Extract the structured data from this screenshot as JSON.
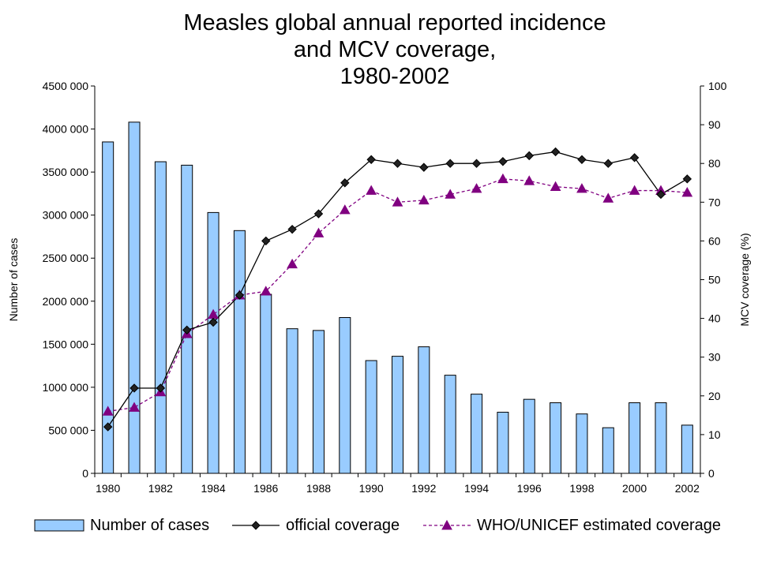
{
  "chart_data": {
    "type": "bar",
    "title_lines": [
      "Measles global annual reported incidence",
      "and MCV coverage,",
      "1980-2002"
    ],
    "ylabel": "Number of cases",
    "y2label": "MCV coverage (%)",
    "ylim": [
      0,
      4500000
    ],
    "y2lim": [
      0,
      100
    ],
    "y_ticks": [
      0,
      500000,
      1000000,
      1500000,
      2000000,
      2500000,
      3000000,
      3500000,
      4000000,
      4500000
    ],
    "y_tick_labels": [
      "0",
      "500 000",
      "1000 000",
      "1500 000",
      "2000 000",
      "2500 000",
      "3000 000",
      "3500 000",
      "4000 000",
      "4500 000"
    ],
    "y2_ticks": [
      0,
      10,
      20,
      30,
      40,
      50,
      60,
      70,
      80,
      90,
      100
    ],
    "y2_tick_labels": [
      "0",
      "10",
      "20",
      "30",
      "40",
      "50",
      "60",
      "70",
      "80",
      "90",
      "100"
    ],
    "x": [
      1980,
      1981,
      1982,
      1983,
      1984,
      1985,
      1986,
      1987,
      1988,
      1989,
      1990,
      1991,
      1992,
      1993,
      1994,
      1995,
      1996,
      1997,
      1998,
      1999,
      2000,
      2001,
      2002
    ],
    "x_tick_labels": [
      "1980",
      "1982",
      "1984",
      "1986",
      "1988",
      "1990",
      "1992",
      "1994",
      "1996",
      "1998",
      "2000",
      "2002"
    ],
    "grid": false,
    "legend_position": "bottom",
    "series": [
      {
        "name": "Number of cases",
        "type": "bar",
        "axis": "left",
        "color": "#99ccff",
        "values": [
          3850000,
          4080000,
          3620000,
          3580000,
          3030000,
          2820000,
          2080000,
          1680000,
          1660000,
          1810000,
          1310000,
          1360000,
          1470000,
          1140000,
          920000,
          710000,
          860000,
          820000,
          690000,
          530000,
          820000,
          820000,
          560000
        ]
      },
      {
        "name": "official coverage",
        "type": "line",
        "axis": "right",
        "color": "#000000",
        "marker": "diamond",
        "values": [
          12,
          22,
          22,
          37,
          39,
          46,
          60,
          63,
          67,
          75,
          81,
          80,
          79,
          80,
          80,
          80.5,
          82,
          83,
          81,
          80,
          81.5,
          72,
          76
        ]
      },
      {
        "name": "WHO/UNICEF estimated coverage",
        "type": "line",
        "axis": "right",
        "color": "#800080",
        "marker": "triangle",
        "dashed": true,
        "values": [
          16,
          17,
          21,
          36,
          41,
          46,
          47,
          54,
          62,
          68,
          73,
          70,
          70.5,
          72,
          73.5,
          76,
          75.5,
          74,
          73.5,
          71,
          73,
          73,
          72.5
        ]
      }
    ]
  }
}
